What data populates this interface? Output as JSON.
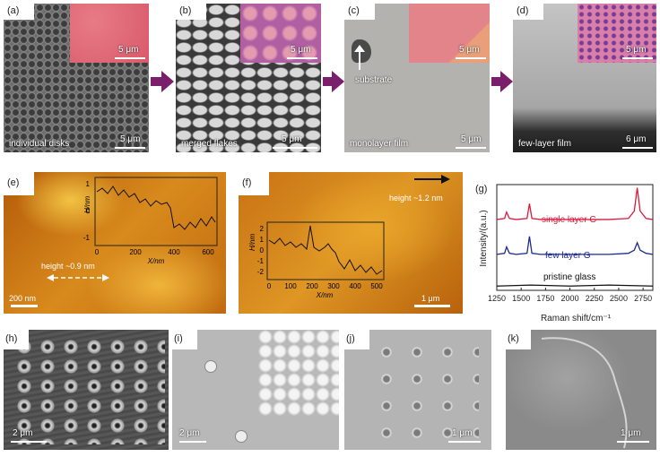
{
  "panels_top": [
    {
      "label": "(a)",
      "caption": "individual disks",
      "inset_scale": "5 μm",
      "main_scale": "5 μm"
    },
    {
      "label": "(b)",
      "caption": "merged flakes",
      "inset_scale": "5 μm",
      "main_scale": "5 μm"
    },
    {
      "label": "(c)",
      "caption": "monolayer film",
      "inset_scale": "5 μm",
      "main_scale": "5 μm",
      "annotation": "substrate"
    },
    {
      "label": "(d)",
      "caption": "few-layer film",
      "inset_scale": "5 μm",
      "main_scale": "6 μm"
    }
  ],
  "panel_e": {
    "label": "(e)",
    "height_text": "height ~0.9 nm",
    "scale": "200 nm",
    "plot_ylabel": "H/nm",
    "plot_xlabel": "X/nm",
    "xticks": [
      "0",
      "200",
      "400",
      "600"
    ],
    "yticks": [
      "1",
      "0",
      "-1"
    ]
  },
  "panel_f": {
    "label": "(f)",
    "height_text": "height ~1.2 nm",
    "scale": "1 μm",
    "plot_ylabel": "H/nm",
    "plot_xlabel": "X/nm",
    "xticks": [
      "0",
      "100",
      "200",
      "300",
      "400",
      "500"
    ],
    "yticks": [
      "2",
      "1",
      "0",
      "-1",
      "-2"
    ]
  },
  "panel_g": {
    "label": "(g)",
    "ylabel": "Intensity/(a.u.)",
    "xlabel": "Raman shift/cm⁻¹",
    "series_labels": [
      "single layer G",
      "few layer G",
      "pristine glass"
    ],
    "xticks": [
      "1250",
      "1500",
      "1750",
      "2000",
      "2250",
      "2500",
      "2750"
    ]
  },
  "panels_bottom": [
    {
      "label": "(h)",
      "scale": "2 μm"
    },
    {
      "label": "(i)",
      "scale": "2 μm"
    },
    {
      "label": "(j)",
      "scale": "1 μm"
    },
    {
      "label": "(k)",
      "scale": "1 μm"
    }
  ],
  "chart_data": {
    "type": "line",
    "title": "",
    "xlabel": "Raman shift/cm⁻¹",
    "ylabel": "Intensity/(a.u.)",
    "xlim": [
      1250,
      2850
    ],
    "series": [
      {
        "name": "single layer G",
        "color": "#d81b3c",
        "x": [
          1250,
          1330,
          1350,
          1380,
          1450,
          1560,
          1585,
          1610,
          1700,
          2000,
          2400,
          2600,
          2660,
          2690,
          2720,
          2780,
          2850
        ],
        "y": [
          0.67,
          0.68,
          0.74,
          0.68,
          0.67,
          0.68,
          0.82,
          0.68,
          0.67,
          0.67,
          0.67,
          0.68,
          0.75,
          0.97,
          0.75,
          0.68,
          0.67
        ]
      },
      {
        "name": "few layer G",
        "color": "#1b2a8f",
        "x": [
          1250,
          1330,
          1350,
          1380,
          1450,
          1560,
          1585,
          1610,
          1700,
          2000,
          2400,
          2600,
          2660,
          2690,
          2720,
          2780,
          2850
        ],
        "y": [
          0.34,
          0.35,
          0.41,
          0.35,
          0.34,
          0.35,
          0.51,
          0.35,
          0.34,
          0.34,
          0.34,
          0.35,
          0.38,
          0.45,
          0.38,
          0.35,
          0.34
        ]
      },
      {
        "name": "pristine glass",
        "color": "#111111",
        "x": [
          1250,
          1600,
          2000,
          2400,
          2850
        ],
        "y": [
          0.04,
          0.05,
          0.04,
          0.05,
          0.04
        ]
      }
    ]
  },
  "colors": {
    "arrow": "#7a1f6b",
    "afm_bg": "#c8730f",
    "afm_light": "#f0b030"
  }
}
